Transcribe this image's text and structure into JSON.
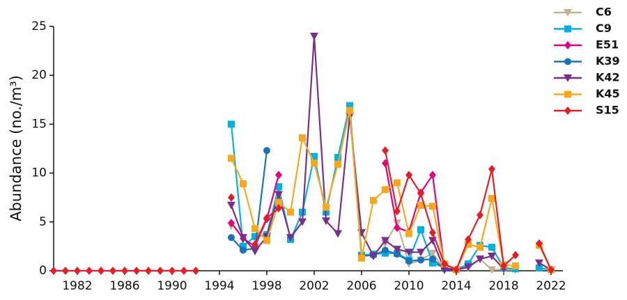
{
  "chart_data": {
    "type": "line",
    "y_label": "Abundance (no./m³)",
    "x": [
      1980,
      1981,
      1982,
      1983,
      1984,
      1985,
      1986,
      1987,
      1988,
      1989,
      1990,
      1991,
      1992,
      1993,
      1994,
      1995,
      1996,
      1997,
      1998,
      1999,
      2000,
      2001,
      2002,
      2003,
      2004,
      2005,
      2006,
      2007,
      2008,
      2009,
      2010,
      2011,
      2012,
      2013,
      2014,
      2015,
      2016,
      2017,
      2018,
      2019,
      2020,
      2021,
      2022
    ],
    "xlim": [
      1980,
      2023
    ],
    "xticks": [
      1982,
      1986,
      1990,
      1994,
      1998,
      2002,
      2006,
      2010,
      2014,
      2018,
      2022
    ],
    "ylim": [
      0,
      25
    ],
    "yticks": [
      0,
      5,
      10,
      15,
      20,
      25
    ],
    "legend": "upper right",
    "series": [
      {
        "name": "C6",
        "color": "#c4b38f",
        "marker": "triangle-down",
        "values": [
          null,
          null,
          null,
          null,
          null,
          null,
          null,
          null,
          null,
          null,
          null,
          null,
          null,
          null,
          null,
          4.6,
          null,
          null,
          null,
          null,
          null,
          null,
          null,
          null,
          null,
          null,
          null,
          null,
          2.8,
          4.9,
          0.7,
          1.1,
          1.8,
          0.1,
          0.1,
          0.3,
          1.2,
          0.1,
          0.1,
          0.1,
          null,
          null,
          null
        ]
      },
      {
        "name": "C9",
        "color": "#00b2e3",
        "marker": "square",
        "values": [
          null,
          null,
          null,
          null,
          null,
          null,
          null,
          null,
          null,
          null,
          null,
          null,
          null,
          null,
          null,
          15.0,
          2.5,
          3.5,
          3.7,
          8.6,
          3.2,
          6.0,
          11.7,
          6.0,
          11.6,
          16.9,
          1.6,
          1.7,
          1.8,
          1.8,
          1.1,
          4.2,
          0.8,
          0.3,
          0.1,
          0.7,
          2.6,
          2.4,
          0.3,
          0.2,
          null,
          0.3,
          0.1
        ]
      },
      {
        "name": "E51",
        "color": "#e5007e",
        "marker": "diamond",
        "values": [
          null,
          null,
          null,
          null,
          null,
          null,
          null,
          null,
          null,
          null,
          null,
          null,
          null,
          null,
          null,
          4.9,
          3.3,
          2.5,
          5.3,
          9.8,
          null,
          null,
          null,
          null,
          null,
          null,
          null,
          null,
          11.0,
          4.4,
          4.0,
          8.0,
          9.8,
          0.3,
          0.1,
          null,
          null,
          null,
          null,
          null,
          null,
          null,
          null
        ]
      },
      {
        "name": "K39",
        "color": "#1a73b9",
        "marker": "circle",
        "values": [
          null,
          null,
          null,
          null,
          null,
          null,
          null,
          null,
          null,
          null,
          null,
          null,
          null,
          null,
          null,
          3.4,
          2.1,
          2.3,
          12.3,
          null,
          null,
          null,
          null,
          null,
          null,
          null,
          1.5,
          1.6,
          2.1,
          1.7,
          1.0,
          1.1,
          1.2,
          0.2,
          0.1,
          null,
          null,
          null,
          null,
          null,
          null,
          null,
          null
        ]
      },
      {
        "name": "K42",
        "color": "#7b2d8e",
        "marker": "triangle-down",
        "values": [
          null,
          null,
          null,
          null,
          null,
          null,
          null,
          null,
          null,
          null,
          null,
          null,
          null,
          null,
          null,
          6.7,
          3.4,
          2.0,
          3.5,
          7.8,
          3.4,
          5.0,
          24.0,
          5.1,
          3.8,
          15.8,
          3.9,
          1.5,
          3.1,
          2.2,
          1.9,
          1.9,
          3.1,
          0.1,
          0.1,
          0.4,
          1.2,
          1.5,
          0.2,
          null,
          null,
          0.8,
          0.1
        ]
      },
      {
        "name": "K45",
        "color": "#f9a71b",
        "marker": "square",
        "values": [
          null,
          null,
          null,
          null,
          null,
          null,
          null,
          null,
          null,
          null,
          null,
          null,
          null,
          null,
          null,
          11.5,
          8.9,
          4.3,
          3.1,
          7.0,
          6.0,
          13.6,
          11.0,
          6.5,
          10.9,
          16.4,
          1.3,
          7.2,
          8.3,
          9.0,
          3.8,
          6.7,
          6.6,
          0.7,
          0.1,
          2.7,
          2.4,
          7.4,
          0.6,
          0.5,
          null,
          2.6,
          0.1
        ]
      },
      {
        "name": "S15",
        "color": "#e31e24",
        "marker": "diamond",
        "values": [
          0,
          0,
          0,
          0,
          0,
          0,
          0,
          0,
          0,
          0,
          0,
          0,
          0,
          null,
          null,
          7.5,
          null,
          2.7,
          5.4,
          6.4,
          null,
          null,
          null,
          null,
          null,
          null,
          null,
          null,
          12.3,
          6.1,
          9.8,
          7.9,
          3.9,
          0.7,
          0.1,
          3.2,
          5.7,
          10.4,
          0.5,
          1.6,
          null,
          2.8,
          0.1
        ]
      }
    ]
  }
}
